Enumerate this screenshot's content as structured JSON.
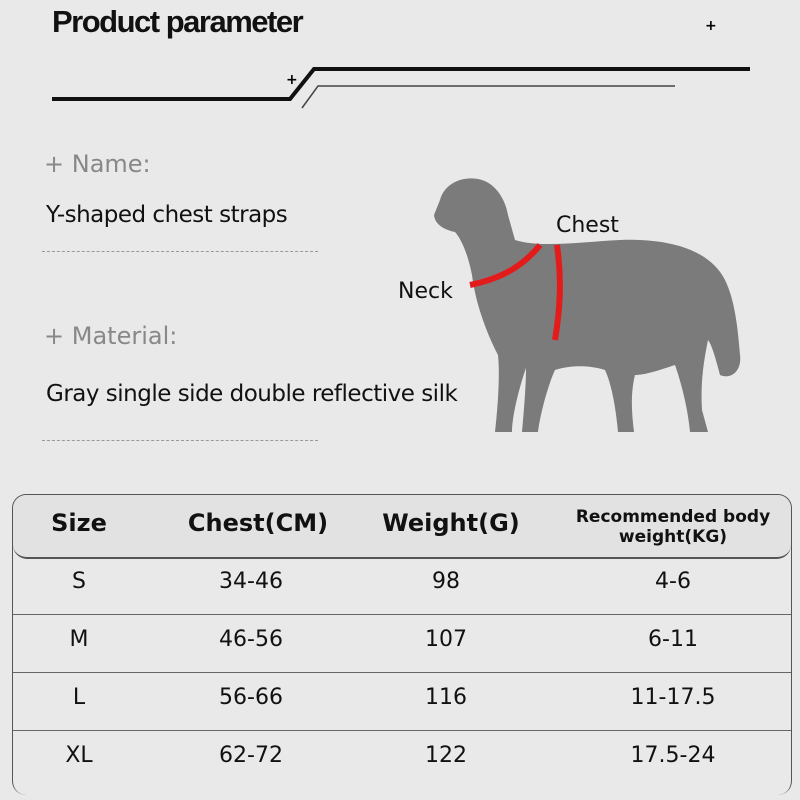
{
  "header": {
    "title": "Product parameter"
  },
  "info": {
    "name_label": "+ Name:",
    "name_value": "Y-shaped chest straps",
    "material_label": "+ Material:",
    "material_value": "Gray single side double reflective silk"
  },
  "diagram": {
    "chest_label": "Chest",
    "neck_label": "Neck",
    "strap_color": "#e31b1b",
    "dog_color": "#7b7b7b"
  },
  "table": {
    "headers": [
      "Size",
      "Chest(CM)",
      "Weight(G)",
      "Recommended body weight(KG)"
    ],
    "rows": [
      [
        "S",
        "34-46",
        "98",
        "4-6"
      ],
      [
        "M",
        "46-56",
        "107",
        "6-11"
      ],
      [
        "L",
        "56-66",
        "116",
        "11-17.5"
      ],
      [
        "XL",
        "62-72",
        "122",
        "17.5-24"
      ]
    ]
  }
}
